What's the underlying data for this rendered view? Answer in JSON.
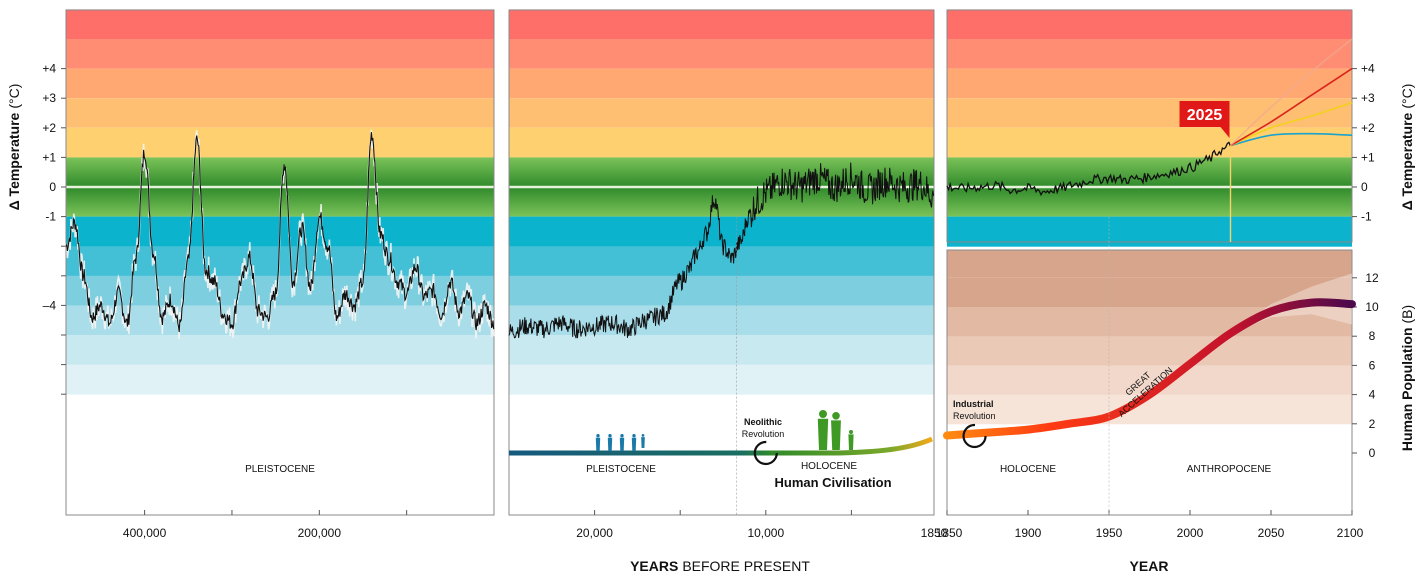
{
  "chart_data": [
    {
      "type": "line",
      "panel": "deep-past",
      "x_axis": {
        "ticks": [
          "400,000",
          "200,000"
        ],
        "tick_values": [
          400000,
          200000
        ],
        "range": [
          490000,
          0
        ],
        "reversed": true
      },
      "y_axis": {
        "label_bold": "Δ Temperature",
        "label_unit": "(°C)",
        "ticks": [
          "+4",
          "+3",
          "+2",
          "+1",
          "0",
          "-1",
          "–4"
        ],
        "range": [
          -7,
          6
        ]
      },
      "series": [
        {
          "x": [
            490000,
            480000,
            470000,
            460000,
            450000,
            440000,
            430000,
            420000,
            410000,
            400000,
            390000,
            380000,
            370000,
            360000,
            350000,
            340000,
            330000,
            320000,
            310000,
            300000,
            290000,
            280000,
            270000,
            260000,
            250000,
            240000,
            230000,
            220000,
            210000,
            200000,
            190000,
            180000,
            170000,
            160000,
            150000,
            140000,
            130000,
            120000,
            110000,
            100000,
            90000,
            80000,
            70000,
            60000,
            50000,
            40000,
            30000,
            20000,
            10000,
            0
          ],
          "y": [
            -2,
            -1.2,
            -3,
            -4.4,
            -4,
            -4.6,
            -3.6,
            -4.6,
            -2.4,
            1.2,
            -2.2,
            -4.4,
            -3.8,
            -4.7,
            -2.5,
            1.6,
            -2.8,
            -3.2,
            -4.3,
            -4.6,
            -3.2,
            -2.4,
            -4.2,
            -4.4,
            -3.6,
            0.8,
            -3.2,
            -1.4,
            -3.4,
            -1,
            -2,
            -4.4,
            -3.6,
            -4,
            -3.2,
            1.8,
            -1.6,
            -2.4,
            -3.2,
            -3.6,
            -2.7,
            -3.7,
            -3.5,
            -4.3,
            -3.2,
            -4.2,
            -3.7,
            -4.6,
            -4,
            -4.6
          ]
        }
      ],
      "period_label": "PLEISTOCENE"
    },
    {
      "type": "line",
      "panel": "recent-past",
      "x_axis": {
        "ticks": [
          "20,000",
          "10,000",
          "1850"
        ],
        "tick_values": [
          20000,
          10000,
          175
        ],
        "range": [
          25000,
          175
        ],
        "reversed": true
      },
      "x_label_bold": "YEARS",
      "x_label_rest": "BEFORE PRESENT",
      "series": [
        {
          "x": [
            25000,
            24000,
            23000,
            22000,
            21000,
            20000,
            19000,
            18000,
            17000,
            16000,
            15000,
            14500,
            14000,
            13500,
            13000,
            12500,
            12000,
            11500,
            11000,
            10500,
            10000,
            9000,
            8000,
            7000,
            6000,
            5000,
            4000,
            3000,
            2000,
            1000,
            175
          ],
          "y": [
            -4.9,
            -4.7,
            -4.8,
            -4.6,
            -4.8,
            -4.7,
            -4.6,
            -4.8,
            -4.5,
            -4.3,
            -3.2,
            -2.8,
            -2.2,
            -1.6,
            -0.4,
            -2,
            -2.4,
            -1.9,
            -1,
            -0.5,
            -0.2,
            0.2,
            0,
            0.3,
            0,
            0.3,
            -0.1,
            0.2,
            0,
            0.1,
            -0.3
          ]
        }
      ],
      "periods": [
        "PLEISTOCENE",
        "HOLOCENE"
      ],
      "event": {
        "line1": "Neolithic",
        "line2": "Revolution"
      },
      "civilisation_label": "Human Civilisation"
    },
    {
      "type": "line",
      "panel": "modern-temperature",
      "x_axis": {
        "ticks": [
          "1850",
          "1900",
          "1950",
          "2000",
          "2050",
          "2100"
        ],
        "tick_values": [
          1850,
          1900,
          1950,
          2000,
          2050,
          2100
        ],
        "range": [
          1850,
          2100
        ]
      },
      "x_label": "YEAR",
      "y_axis": {
        "label_bold": "Δ Temperature",
        "label_unit": "(°C)",
        "ticks": [
          "+4",
          "+3",
          "+2",
          "+1",
          "0",
          "-1"
        ],
        "range": [
          -2,
          6
        ]
      },
      "marker": {
        "year": 2025,
        "label": "2025"
      },
      "series": [
        {
          "role": "observed",
          "color": "#111111",
          "x": [
            1850,
            1860,
            1870,
            1880,
            1890,
            1900,
            1910,
            1920,
            1930,
            1940,
            1950,
            1960,
            1970,
            1980,
            1990,
            2000,
            2010,
            2020,
            2025
          ],
          "y": [
            0,
            -0.05,
            0,
            0.05,
            -0.1,
            -0.05,
            -0.15,
            -0.05,
            0.1,
            0.25,
            0.3,
            0.25,
            0.3,
            0.4,
            0.5,
            0.65,
            0.9,
            1.25,
            1.4
          ]
        },
        {
          "role": "scenario",
          "color": "#1aa3cc",
          "x": [
            2025,
            2050,
            2075,
            2100
          ],
          "y": [
            1.4,
            1.75,
            1.8,
            1.75
          ]
        },
        {
          "role": "scenario",
          "color": "#f2d21a",
          "x": [
            2025,
            2050,
            2075,
            2100
          ],
          "y": [
            1.4,
            2.0,
            2.4,
            2.85
          ]
        },
        {
          "role": "scenario",
          "color": "#d9241c",
          "x": [
            2025,
            2050,
            2075,
            2100
          ],
          "y": [
            1.4,
            2.2,
            3.1,
            4.0
          ]
        },
        {
          "role": "scenario",
          "color": "#f0a890",
          "x": [
            2025,
            2050,
            2075,
            2100
          ],
          "y": [
            1.4,
            2.7,
            3.9,
            5.0
          ]
        }
      ]
    },
    {
      "type": "line",
      "panel": "human-population",
      "x_axis": {
        "ticks": [
          "1850",
          "1900",
          "1950",
          "2000",
          "2050",
          "2100"
        ],
        "tick_values": [
          1850,
          1900,
          1950,
          2000,
          2050,
          2100
        ],
        "range": [
          1850,
          2100
        ]
      },
      "y_axis": {
        "label_bold": "Human Population",
        "label_unit": "(B)",
        "ticks": [
          "12",
          "10",
          "8",
          "6",
          "4",
          "2",
          "0"
        ],
        "range": [
          -2,
          14
        ]
      },
      "series": [
        {
          "x": [
            1850,
            1875,
            1900,
            1925,
            1950,
            1975,
            2000,
            2025,
            2050,
            2075,
            2100
          ],
          "y": [
            1.2,
            1.4,
            1.6,
            2,
            2.5,
            4,
            6.1,
            8.2,
            9.7,
            10.3,
            10.2
          ]
        }
      ],
      "periods": [
        "HOLOCENE",
        "ANTHROPOCENE"
      ],
      "event": {
        "line1": "Industrial",
        "line2": "Revolution"
      },
      "annotation": [
        "GREAT",
        "ACCELERATION"
      ]
    }
  ],
  "colors": {
    "warm_bands": [
      "#ff6f6a",
      "#ff8d73",
      "#ffa872",
      "#ffbf72",
      "#ffd070"
    ],
    "green_band": "#5fae4c",
    "cool_bands": [
      "#0bb3cc",
      "#43bfd6",
      "#7dcfe0",
      "#a8dde9",
      "#c9e9f1",
      "#e1f2f7"
    ],
    "population_bands": [
      "#d7a58c",
      "#e2b9a3",
      "#eac9b7",
      "#f1d8ca",
      "#f6e4d9"
    ],
    "pleistocene": "#16597f",
    "holocene": "#4a9a2b"
  }
}
